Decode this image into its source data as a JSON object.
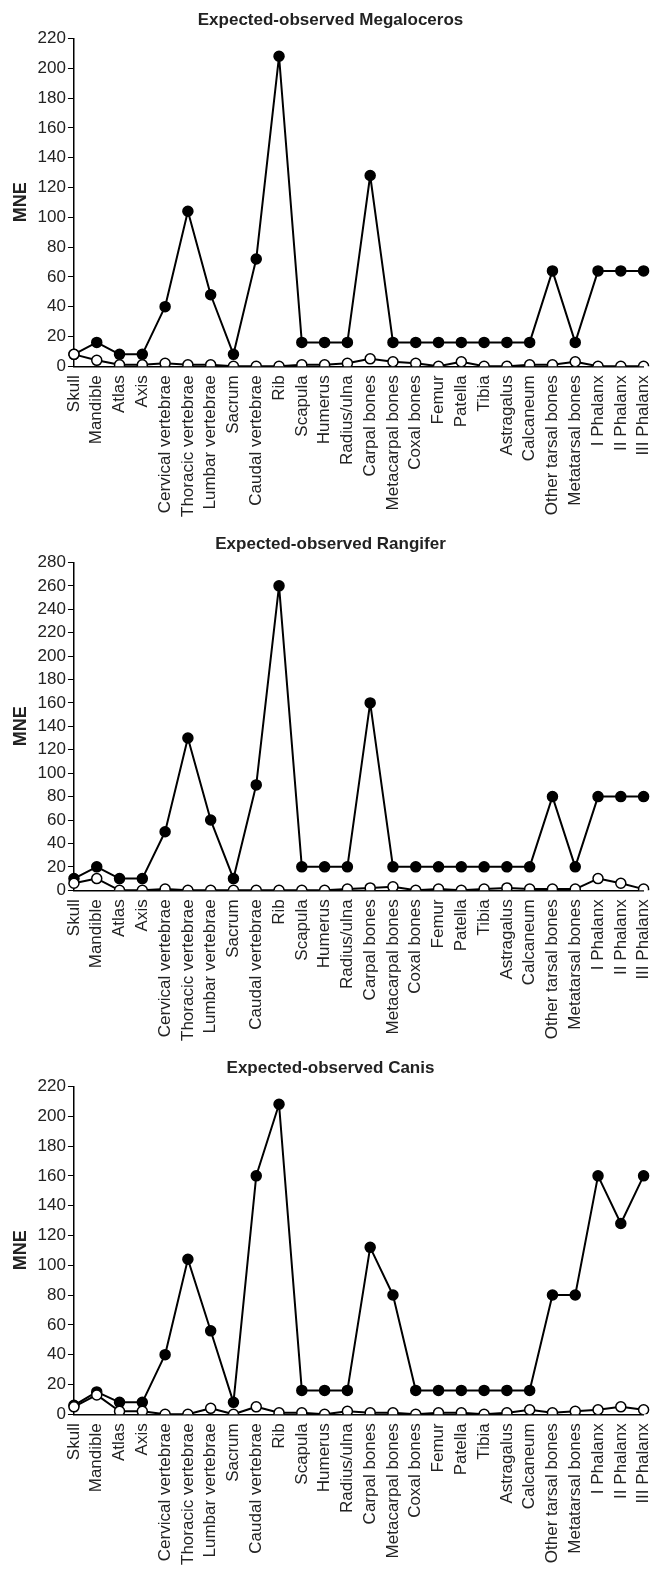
{
  "chart_data": [
    {
      "type": "line",
      "title": "Expected-observed Megaloceros",
      "ylabel": "MNE",
      "categories": [
        "Skull",
        "Mandible",
        "Atlas",
        "Axis",
        "Cervical vertebrae",
        "Thoracic vertebrae",
        "Lumbar vertebrae",
        "Sacrum",
        "Caudal vertebrae",
        "Rib",
        "Scapula",
        "Humerus",
        "Radius/ulna",
        "Carpal bones",
        "Metacarpal bones",
        "Coxal bones",
        "Femur",
        "Patella",
        "Tibia",
        "Astragalus",
        "Calcaneum",
        "Other tarsal bones",
        "Metatarsal bones",
        "I Phalanx",
        "II Phalanx",
        "III Phalanx"
      ],
      "ylim": [
        0,
        220
      ],
      "yticks": [
        0,
        20,
        40,
        60,
        80,
        100,
        120,
        140,
        160,
        180,
        200,
        220
      ],
      "grid": false,
      "legend": false,
      "marker": "circle",
      "line_style": "solid",
      "series": [
        {
          "color": "#000000",
          "values": [
            8,
            16,
            8,
            8,
            40,
            104,
            48,
            8,
            72,
            208,
            16,
            16,
            16,
            128,
            16,
            16,
            16,
            16,
            16,
            16,
            16,
            64,
            16,
            64,
            64,
            64
          ]
        },
        {
          "color": "#ffffff",
          "values": [
            8,
            4,
            1,
            1,
            2,
            1,
            1,
            0,
            0,
            0,
            1,
            1,
            2,
            5,
            3,
            2,
            0,
            3,
            0,
            0,
            1,
            1,
            3,
            0,
            0,
            0
          ]
        }
      ]
    },
    {
      "type": "line",
      "title": "Expected-observed Rangifer",
      "ylabel": "MNE",
      "categories": [
        "Skull",
        "Mandible",
        "Atlas",
        "Axis",
        "Cervical vertebrae",
        "Thoracic vertebrae",
        "Lumbar vertebrae",
        "Sacrum",
        "Caudal vertebrae",
        "Rib",
        "Scapula",
        "Humerus",
        "Radius/ulna",
        "Carpal bones",
        "Metacarpal bones",
        "Coxal bones",
        "Femur",
        "Patella",
        "Tibia",
        "Astragalus",
        "Calcaneum",
        "Other tarsal bones",
        "Metatarsal bones",
        "I Phalanx",
        "II Phalanx",
        "III Phalanx"
      ],
      "ylim": [
        0,
        280
      ],
      "yticks": [
        0,
        20,
        40,
        60,
        80,
        100,
        120,
        140,
        160,
        180,
        200,
        220,
        240,
        260,
        280
      ],
      "grid": false,
      "legend": false,
      "marker": "circle",
      "line_style": "solid",
      "series": [
        {
          "color": "#000000",
          "values": [
            10,
            20,
            10,
            10,
            50,
            130,
            60,
            10,
            90,
            260,
            20,
            20,
            20,
            160,
            20,
            20,
            20,
            20,
            20,
            20,
            20,
            80,
            20,
            80,
            80,
            80
          ]
        },
        {
          "color": "#ffffff",
          "values": [
            6,
            10,
            0,
            0,
            1,
            0,
            0,
            0,
            0,
            0,
            0,
            0,
            1,
            2,
            3,
            0,
            1,
            0,
            1,
            2,
            1,
            1,
            1,
            10,
            6,
            1
          ]
        }
      ]
    },
    {
      "type": "line",
      "title": "Expected-observed Canis",
      "ylabel": "MNE",
      "categories": [
        "Skull",
        "Mandible",
        "Atlas",
        "Axis",
        "Cervical vertebrae",
        "Thoracic vertebrae",
        "Lumbar vertebrae",
        "Sacrum",
        "Caudal vertebrae",
        "Rib",
        "Scapula",
        "Humerus",
        "Radius/ulna",
        "Carpal bones",
        "Metacarpal bones",
        "Coxal bones",
        "Femur",
        "Patella",
        "Tibia",
        "Astragalus",
        "Calcaneum",
        "Other tarsal bones",
        "Metatarsal bones",
        "I Phalanx",
        "II Phalanx",
        "III Phalanx"
      ],
      "ylim": [
        0,
        220
      ],
      "yticks": [
        0,
        20,
        40,
        60,
        80,
        100,
        120,
        140,
        160,
        180,
        200,
        220
      ],
      "grid": false,
      "legend": false,
      "marker": "circle",
      "line_style": "solid",
      "series": [
        {
          "color": "#000000",
          "values": [
            6,
            15,
            8,
            8,
            40,
            104,
            56,
            8,
            160,
            208,
            16,
            16,
            16,
            112,
            80,
            16,
            16,
            16,
            16,
            16,
            16,
            80,
            80,
            160,
            128,
            160
          ]
        },
        {
          "color": "#ffffff",
          "values": [
            5,
            13,
            2,
            2,
            0,
            0,
            4,
            0,
            5,
            1,
            1,
            0,
            2,
            1,
            1,
            0,
            1,
            1,
            0,
            1,
            3,
            1,
            2,
            3,
            5,
            3
          ]
        }
      ]
    }
  ]
}
